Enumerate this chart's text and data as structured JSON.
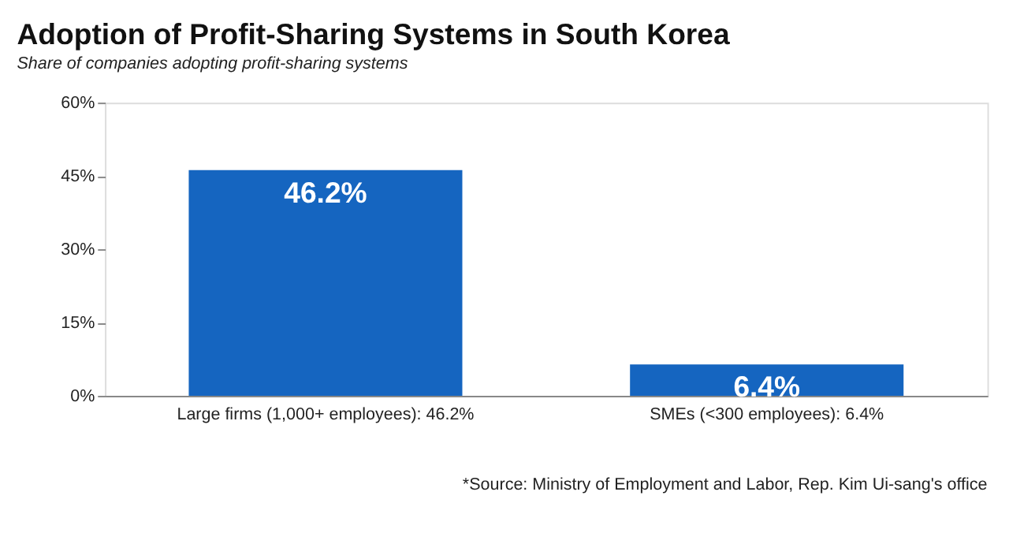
{
  "chart_data": {
    "type": "bar",
    "title": "Adoption of Profit-Sharing Systems in South Korea",
    "subtitle": "Share of companies adopting profit-sharing systems",
    "categories": [
      "Large firms (1,000+ employees): 46.2%",
      "SMEs (<300 employees): 6.4%"
    ],
    "values": [
      46.2,
      6.4
    ],
    "value_labels": [
      "46.2%",
      "6.4%"
    ],
    "color": "#1565c0",
    "ylim": [
      0,
      60
    ],
    "yticks": [
      {
        "value": 0,
        "label": "0%"
      },
      {
        "value": 15,
        "label": "15%"
      },
      {
        "value": 30,
        "label": "30%"
      },
      {
        "value": 45,
        "label": "45%"
      },
      {
        "value": 60,
        "label": "60%"
      }
    ],
    "grid": false,
    "annotations": [
      "*Source: Ministry of Employment and Labor, Rep. Kim Ui-sang's office"
    ]
  }
}
